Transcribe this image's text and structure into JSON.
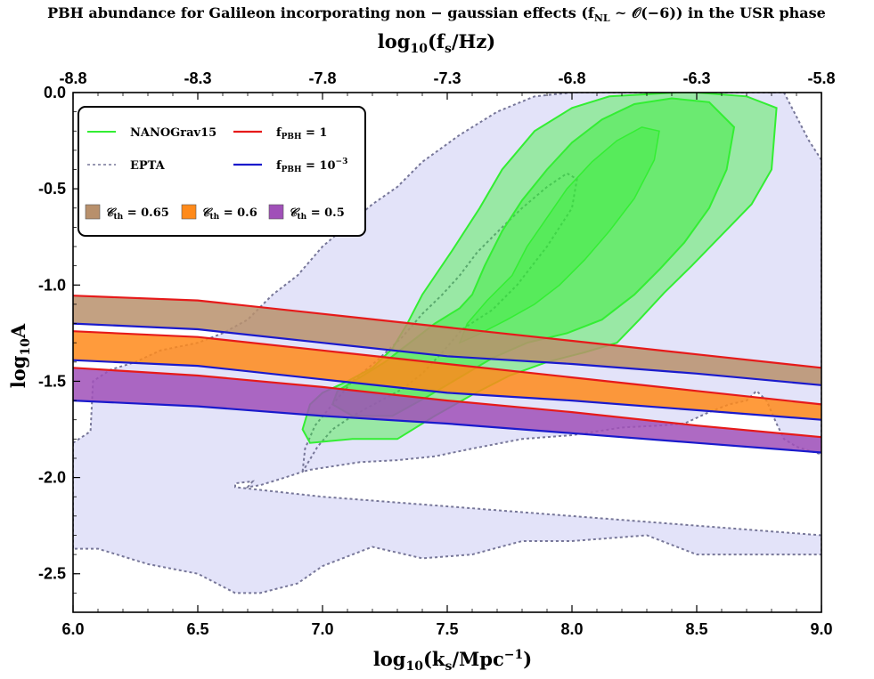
{
  "chart_data": {
    "type": "area",
    "title": "PBH abundance for Galileon incorporating non − gaussian effects (f_NL ∼ 𝒪(−6)) in the USR phase",
    "title_parts": {
      "main": "PBH abundance for Galileon incorporating non − gaussian effects (f",
      "sub": "NL",
      "rest": " ∼ 𝒪(−6)) in the USR phase"
    },
    "top_axis": {
      "label_base": "log",
      "label_sub": "10",
      "label_rest": "(f",
      "label_sub2": "s",
      "label_rest2": "/Hz)",
      "ticks": [
        "-8.8",
        "-8.3",
        "-7.8",
        "-7.3",
        "-6.8",
        "-6.3",
        "-5.8"
      ],
      "range": [
        -8.8,
        -5.8
      ]
    },
    "xlabel": {
      "base": "log",
      "sub": "10",
      "rest": "(k",
      "sub2": "s",
      "rest2": "/Mpc",
      "sup": "−1",
      "rest3": ")"
    },
    "ylabel": {
      "base": "log",
      "sub": "10",
      "rest": "A"
    },
    "xlim": [
      6.0,
      9.0
    ],
    "ylim": [
      -2.7,
      0.0
    ],
    "x_ticks": [
      "6.0",
      "6.5",
      "7.0",
      "7.5",
      "8.0",
      "8.5",
      "9.0"
    ],
    "y_ticks": [
      "0.0",
      "-0.5",
      "-1.0",
      "-1.5",
      "-2.0",
      "-2.5"
    ],
    "grid": false,
    "legend_position": "top-left",
    "legend": {
      "nanograv": "NANOGrav15",
      "epta": "EPTA",
      "fpbh1_base": "f",
      "fpbh1_sub": "PBH",
      "fpbh1_rest": " = 1",
      "fpbh2_base": "f",
      "fpbh2_sub": "PBH",
      "fpbh2_rest": " = 10",
      "fpbh2_sup": "−3",
      "c1_base": "𝒞",
      "c1_sub": "th",
      "c1_rest": " = 0.65",
      "c2_base": "𝒞",
      "c2_sub": "th",
      "c2_rest": " = 0.6",
      "c3_base": "𝒞",
      "c3_sub": "th",
      "c3_rest": " = 0.5"
    },
    "colors": {
      "nanograv": "#33ee33",
      "epta_fill": "#dcdcf8",
      "epta_line": "#777799",
      "red": "#e61a1a",
      "blue": "#1a1acc",
      "brown": "#b8906c",
      "orange": "#ff8a1a",
      "purple": "#a050b8"
    },
    "bands": [
      {
        "name": "𝒞th = 0.65",
        "color": "#b8906c",
        "upper": [
          [
            6.0,
            -1.055
          ],
          [
            6.5,
            -1.08
          ],
          [
            7.0,
            -1.15
          ],
          [
            7.5,
            -1.22
          ],
          [
            8.0,
            -1.29
          ],
          [
            8.5,
            -1.36
          ],
          [
            9.0,
            -1.43
          ]
        ],
        "lower": [
          [
            6.0,
            -1.2
          ],
          [
            6.5,
            -1.23
          ],
          [
            7.0,
            -1.3
          ],
          [
            7.5,
            -1.37
          ],
          [
            8.0,
            -1.41
          ],
          [
            8.5,
            -1.46
          ],
          [
            9.0,
            -1.52
          ]
        ]
      },
      {
        "name": "𝒞th = 0.6",
        "color": "#ff8a1a",
        "upper": [
          [
            6.0,
            -1.24
          ],
          [
            6.5,
            -1.27
          ],
          [
            7.0,
            -1.34
          ],
          [
            7.5,
            -1.41
          ],
          [
            8.0,
            -1.48
          ],
          [
            8.5,
            -1.55
          ],
          [
            9.0,
            -1.62
          ]
        ],
        "lower": [
          [
            6.0,
            -1.39
          ],
          [
            6.5,
            -1.42
          ],
          [
            7.0,
            -1.49
          ],
          [
            7.5,
            -1.56
          ],
          [
            8.0,
            -1.6
          ],
          [
            8.5,
            -1.65
          ],
          [
            9.0,
            -1.7
          ]
        ]
      },
      {
        "name": "𝒞th = 0.5",
        "color": "#a050b8",
        "upper": [
          [
            6.0,
            -1.43
          ],
          [
            6.5,
            -1.47
          ],
          [
            7.0,
            -1.53
          ],
          [
            7.5,
            -1.6
          ],
          [
            8.0,
            -1.66
          ],
          [
            8.5,
            -1.73
          ],
          [
            9.0,
            -1.79
          ]
        ],
        "lower": [
          [
            6.0,
            -1.6
          ],
          [
            6.5,
            -1.63
          ],
          [
            7.0,
            -1.68
          ],
          [
            7.5,
            -1.72
          ],
          [
            8.0,
            -1.77
          ],
          [
            8.5,
            -1.82
          ],
          [
            9.0,
            -1.87
          ]
        ]
      }
    ],
    "epta_region": [
      [
        6.0,
        -1.82
      ],
      [
        6.07,
        -1.76
      ],
      [
        6.08,
        -1.5
      ],
      [
        6.15,
        -1.44
      ],
      [
        6.25,
        -1.4
      ],
      [
        6.35,
        -1.34
      ],
      [
        6.5,
        -1.3
      ],
      [
        6.6,
        -1.25
      ],
      [
        6.7,
        -1.18
      ],
      [
        6.8,
        -1.05
      ],
      [
        6.9,
        -0.95
      ],
      [
        7.0,
        -0.8
      ],
      [
        7.1,
        -0.69
      ],
      [
        7.2,
        -0.58
      ],
      [
        7.3,
        -0.49
      ],
      [
        7.4,
        -0.36
      ],
      [
        7.55,
        -0.22
      ],
      [
        7.7,
        -0.1
      ],
      [
        7.85,
        -0.02
      ],
      [
        8.0,
        0.0
      ],
      [
        8.2,
        0.0
      ],
      [
        8.4,
        0.0
      ],
      [
        8.55,
        0.0
      ],
      [
        8.75,
        0.0
      ],
      [
        8.85,
        0.0
      ],
      [
        8.95,
        -0.25
      ],
      [
        9.0,
        -0.35
      ],
      [
        9.0,
        -1.88
      ],
      [
        8.95,
        -1.86
      ],
      [
        8.9,
        -1.84
      ],
      [
        8.85,
        -1.8
      ],
      [
        8.82,
        -1.72
      ],
      [
        8.78,
        -1.6
      ],
      [
        8.74,
        -1.55
      ],
      [
        8.7,
        -1.6
      ],
      [
        8.63,
        -1.62
      ],
      [
        8.55,
        -1.66
      ],
      [
        8.45,
        -1.72
      ],
      [
        8.35,
        -1.73
      ],
      [
        8.2,
        -1.74
      ],
      [
        8.0,
        -1.78
      ],
      [
        7.8,
        -1.8
      ],
      [
        7.6,
        -1.85
      ],
      [
        7.45,
        -1.89
      ],
      [
        7.3,
        -1.91
      ],
      [
        7.15,
        -1.92
      ],
      [
        7.05,
        -1.94
      ],
      [
        6.95,
        -1.96
      ],
      [
        6.92,
        -1.97
      ],
      [
        6.93,
        -1.85
      ],
      [
        6.97,
        -1.73
      ],
      [
        7.04,
        -1.62
      ],
      [
        7.12,
        -1.5
      ],
      [
        7.22,
        -1.39
      ],
      [
        7.32,
        -1.27
      ],
      [
        7.4,
        -1.15
      ],
      [
        7.48,
        -1.05
      ],
      [
        7.55,
        -0.95
      ],
      [
        7.62,
        -0.83
      ],
      [
        7.72,
        -0.7
      ],
      [
        7.8,
        -0.6
      ],
      [
        7.9,
        -0.49
      ],
      [
        7.98,
        -0.42
      ],
      [
        8.02,
        -0.45
      ],
      [
        8.0,
        -0.6
      ],
      [
        7.9,
        -0.8
      ],
      [
        7.78,
        -1.0
      ],
      [
        7.68,
        -1.13
      ],
      [
        7.56,
        -1.23
      ],
      [
        7.48,
        -1.35
      ],
      [
        7.4,
        -1.46
      ],
      [
        7.32,
        -1.54
      ],
      [
        7.22,
        -1.61
      ],
      [
        7.12,
        -1.68
      ],
      [
        7.04,
        -1.75
      ],
      [
        6.98,
        -1.84
      ],
      [
        6.92,
        -1.97
      ],
      [
        6.85,
        -2.0
      ],
      [
        6.75,
        -2.04
      ],
      [
        6.7,
        -2.05
      ],
      [
        6.72,
        -2.02
      ],
      [
        6.65,
        -2.03
      ],
      [
        6.65,
        -2.05
      ],
      [
        7.0,
        -2.1
      ],
      [
        7.5,
        -2.15
      ],
      [
        8.0,
        -2.2
      ],
      [
        8.5,
        -2.25
      ],
      [
        9.0,
        -2.3
      ],
      [
        9.0,
        -2.4
      ],
      [
        8.5,
        -2.4
      ],
      [
        8.3,
        -2.3
      ],
      [
        8.0,
        -2.33
      ],
      [
        7.8,
        -2.33
      ],
      [
        7.6,
        -2.4
      ],
      [
        7.4,
        -2.42
      ],
      [
        7.2,
        -2.36
      ],
      [
        7.0,
        -2.46
      ],
      [
        6.9,
        -2.55
      ],
      [
        6.75,
        -2.6
      ],
      [
        6.65,
        -2.6
      ],
      [
        6.5,
        -2.5
      ],
      [
        6.3,
        -2.45
      ],
      [
        6.1,
        -2.37
      ],
      [
        6.0,
        -2.37
      ]
    ],
    "nanograv_outer": [
      [
        7.34,
        -1.2
      ],
      [
        7.4,
        -1.05
      ],
      [
        7.52,
        -0.82
      ],
      [
        7.63,
        -0.6
      ],
      [
        7.72,
        -0.4
      ],
      [
        7.85,
        -0.2
      ],
      [
        8.0,
        -0.08
      ],
      [
        8.15,
        -0.02
      ],
      [
        8.42,
        0.0
      ],
      [
        8.5,
        0.0
      ],
      [
        8.7,
        -0.02
      ],
      [
        8.82,
        -0.08
      ],
      [
        8.8,
        -0.4
      ],
      [
        8.72,
        -0.58
      ],
      [
        8.6,
        -0.74
      ],
      [
        8.48,
        -0.9
      ],
      [
        8.37,
        -1.04
      ],
      [
        8.27,
        -1.18
      ],
      [
        8.18,
        -1.3
      ],
      [
        8.05,
        -1.35
      ],
      [
        7.9,
        -1.4
      ],
      [
        7.75,
        -1.47
      ],
      [
        7.6,
        -1.57
      ],
      [
        7.45,
        -1.68
      ],
      [
        7.3,
        -1.8
      ],
      [
        7.12,
        -1.8
      ],
      [
        6.95,
        -1.82
      ],
      [
        6.92,
        -1.75
      ],
      [
        6.95,
        -1.62
      ],
      [
        7.0,
        -1.56
      ],
      [
        7.1,
        -1.5
      ],
      [
        7.2,
        -1.43
      ],
      [
        7.28,
        -1.33
      ],
      [
        7.34,
        -1.2
      ]
    ],
    "nanograv_inner": [
      [
        7.6,
        -1.05
      ],
      [
        7.65,
        -0.9
      ],
      [
        7.72,
        -0.72
      ],
      [
        7.8,
        -0.56
      ],
      [
        7.9,
        -0.4
      ],
      [
        8.0,
        -0.26
      ],
      [
        8.12,
        -0.14
      ],
      [
        8.25,
        -0.06
      ],
      [
        8.4,
        -0.03
      ],
      [
        8.55,
        -0.05
      ],
      [
        8.65,
        -0.18
      ],
      [
        8.62,
        -0.4
      ],
      [
        8.55,
        -0.6
      ],
      [
        8.45,
        -0.78
      ],
      [
        8.35,
        -0.92
      ],
      [
        8.25,
        -1.05
      ],
      [
        8.12,
        -1.18
      ],
      [
        7.98,
        -1.25
      ],
      [
        7.82,
        -1.3
      ],
      [
        7.68,
        -1.38
      ],
      [
        7.55,
        -1.48
      ],
      [
        7.42,
        -1.58
      ],
      [
        7.28,
        -1.68
      ],
      [
        7.12,
        -1.68
      ],
      [
        7.04,
        -1.62
      ],
      [
        7.06,
        -1.55
      ],
      [
        7.15,
        -1.48
      ],
      [
        7.25,
        -1.4
      ],
      [
        7.35,
        -1.3
      ],
      [
        7.45,
        -1.2
      ],
      [
        7.55,
        -1.12
      ],
      [
        7.6,
        -1.05
      ]
    ],
    "nanograv_core": [
      [
        7.76,
        -0.95
      ],
      [
        7.82,
        -0.8
      ],
      [
        7.9,
        -0.65
      ],
      [
        7.98,
        -0.5
      ],
      [
        8.08,
        -0.36
      ],
      [
        8.18,
        -0.25
      ],
      [
        8.28,
        -0.18
      ],
      [
        8.35,
        -0.2
      ],
      [
        8.33,
        -0.35
      ],
      [
        8.25,
        -0.55
      ],
      [
        8.15,
        -0.72
      ],
      [
        8.05,
        -0.87
      ],
      [
        7.95,
        -1.0
      ],
      [
        7.85,
        -1.1
      ],
      [
        7.74,
        -1.18
      ],
      [
        7.62,
        -1.26
      ],
      [
        7.55,
        -1.3
      ],
      [
        7.58,
        -1.2
      ],
      [
        7.66,
        -1.08
      ],
      [
        7.76,
        -0.95
      ]
    ]
  }
}
